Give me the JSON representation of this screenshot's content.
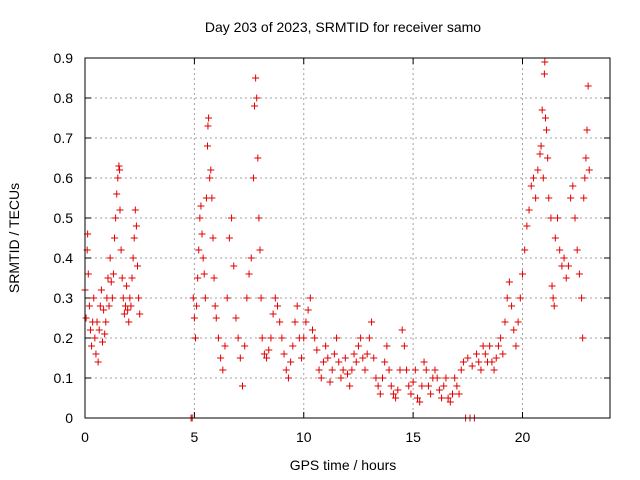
{
  "chart_data": {
    "type": "scatter",
    "title": "Day 203 of 2023, SRMTID for receiver samo",
    "xlabel": "GPS time / hours",
    "ylabel": "SRMTID / TECUs",
    "xlim": [
      0,
      24
    ],
    "ylim": [
      0,
      0.9
    ],
    "xticks": [
      0,
      5,
      10,
      15,
      20
    ],
    "xtick_labels": [
      "0",
      "5",
      "10",
      "15",
      "20"
    ],
    "yticks": [
      0,
      0.1,
      0.2,
      0.3,
      0.4,
      0.5,
      0.6,
      0.7,
      0.8,
      0.9
    ],
    "ytick_labels": [
      "0",
      "0.1",
      "0.2",
      "0.3",
      "0.4",
      "0.5",
      "0.6",
      "0.7",
      "0.8",
      "0.9"
    ],
    "grid": true,
    "marker": "+",
    "color": "#e00000",
    "series": [
      {
        "name": "SRMTID",
        "points": [
          [
            0.0,
            0.32
          ],
          [
            0.05,
            0.25
          ],
          [
            0.1,
            0.42
          ],
          [
            0.12,
            0.46
          ],
          [
            0.15,
            0.36
          ],
          [
            0.2,
            0.28
          ],
          [
            0.25,
            0.22
          ],
          [
            0.3,
            0.18
          ],
          [
            0.35,
            0.24
          ],
          [
            0.4,
            0.3
          ],
          [
            0.45,
            0.2
          ],
          [
            0.5,
            0.16
          ],
          [
            0.55,
            0.24
          ],
          [
            0.6,
            0.14
          ],
          [
            0.65,
            0.22
          ],
          [
            0.7,
            0.28
          ],
          [
            0.75,
            0.32
          ],
          [
            0.8,
            0.19
          ],
          [
            0.85,
            0.27
          ],
          [
            0.9,
            0.21
          ],
          [
            0.95,
            0.24
          ],
          [
            1.0,
            0.3
          ],
          [
            1.05,
            0.35
          ],
          [
            1.1,
            0.28
          ],
          [
            1.15,
            0.4
          ],
          [
            1.2,
            0.34
          ],
          [
            1.25,
            0.3
          ],
          [
            1.3,
            0.36
          ],
          [
            1.35,
            0.45
          ],
          [
            1.4,
            0.5
          ],
          [
            1.45,
            0.56
          ],
          [
            1.5,
            0.6
          ],
          [
            1.55,
            0.63
          ],
          [
            1.58,
            0.62
          ],
          [
            1.6,
            0.52
          ],
          [
            1.65,
            0.42
          ],
          [
            1.7,
            0.35
          ],
          [
            1.75,
            0.3
          ],
          [
            1.8,
            0.26
          ],
          [
            1.85,
            0.28
          ],
          [
            1.9,
            0.33
          ],
          [
            1.95,
            0.27
          ],
          [
            2.0,
            0.24
          ],
          [
            2.05,
            0.3
          ],
          [
            2.1,
            0.28
          ],
          [
            2.15,
            0.35
          ],
          [
            2.2,
            0.4
          ],
          [
            2.25,
            0.45
          ],
          [
            2.3,
            0.52
          ],
          [
            2.35,
            0.48
          ],
          [
            2.4,
            0.38
          ],
          [
            2.45,
            0.3
          ],
          [
            2.5,
            0.26
          ],
          [
            4.85,
            0.0
          ],
          [
            4.9,
            0.0
          ],
          [
            4.95,
            0.3
          ],
          [
            5.0,
            0.25
          ],
          [
            5.05,
            0.2
          ],
          [
            5.1,
            0.28
          ],
          [
            5.15,
            0.35
          ],
          [
            5.2,
            0.42
          ],
          [
            5.25,
            0.5
          ],
          [
            5.3,
            0.53
          ],
          [
            5.35,
            0.46
          ],
          [
            5.4,
            0.4
          ],
          [
            5.45,
            0.36
          ],
          [
            5.5,
            0.3
          ],
          [
            5.55,
            0.55
          ],
          [
            5.6,
            0.68
          ],
          [
            5.62,
            0.73
          ],
          [
            5.65,
            0.75
          ],
          [
            5.7,
            0.6
          ],
          [
            5.75,
            0.62
          ],
          [
            5.8,
            0.55
          ],
          [
            5.85,
            0.45
          ],
          [
            5.9,
            0.35
          ],
          [
            5.95,
            0.28
          ],
          [
            6.0,
            0.25
          ],
          [
            6.1,
            0.2
          ],
          [
            6.2,
            0.15
          ],
          [
            6.3,
            0.12
          ],
          [
            6.4,
            0.18
          ],
          [
            6.5,
            0.3
          ],
          [
            6.6,
            0.45
          ],
          [
            6.7,
            0.5
          ],
          [
            6.8,
            0.38
          ],
          [
            6.9,
            0.25
          ],
          [
            7.0,
            0.2
          ],
          [
            7.1,
            0.15
          ],
          [
            7.2,
            0.08
          ],
          [
            7.3,
            0.18
          ],
          [
            7.4,
            0.3
          ],
          [
            7.5,
            0.36
          ],
          [
            7.6,
            0.4
          ],
          [
            7.7,
            0.6
          ],
          [
            7.75,
            0.78
          ],
          [
            7.8,
            0.85
          ],
          [
            7.85,
            0.8
          ],
          [
            7.9,
            0.65
          ],
          [
            7.95,
            0.5
          ],
          [
            8.0,
            0.42
          ],
          [
            8.05,
            0.3
          ],
          [
            8.1,
            0.2
          ],
          [
            8.2,
            0.16
          ],
          [
            8.3,
            0.15
          ],
          [
            8.4,
            0.17
          ],
          [
            8.5,
            0.2
          ],
          [
            8.6,
            0.26
          ],
          [
            8.7,
            0.3
          ],
          [
            8.8,
            0.28
          ],
          [
            8.9,
            0.24
          ],
          [
            9.0,
            0.2
          ],
          [
            9.1,
            0.16
          ],
          [
            9.2,
            0.12
          ],
          [
            9.3,
            0.1
          ],
          [
            9.4,
            0.14
          ],
          [
            9.5,
            0.18
          ],
          [
            9.6,
            0.24
          ],
          [
            9.7,
            0.28
          ],
          [
            9.8,
            0.2
          ],
          [
            9.9,
            0.15
          ],
          [
            10.0,
            0.2
          ],
          [
            10.1,
            0.24
          ],
          [
            10.2,
            0.27
          ],
          [
            10.3,
            0.3
          ],
          [
            10.4,
            0.22
          ],
          [
            10.5,
            0.2
          ],
          [
            10.6,
            0.17
          ],
          [
            10.7,
            0.12
          ],
          [
            10.8,
            0.1
          ],
          [
            10.9,
            0.14
          ],
          [
            11.0,
            0.18
          ],
          [
            11.1,
            0.15
          ],
          [
            11.2,
            0.09
          ],
          [
            11.3,
            0.12
          ],
          [
            11.4,
            0.16
          ],
          [
            11.5,
            0.2
          ],
          [
            11.6,
            0.14
          ],
          [
            11.7,
            0.1
          ],
          [
            11.8,
            0.12
          ],
          [
            11.9,
            0.15
          ],
          [
            12.0,
            0.11
          ],
          [
            12.1,
            0.08
          ],
          [
            12.2,
            0.12
          ],
          [
            12.3,
            0.16
          ],
          [
            12.4,
            0.14
          ],
          [
            12.5,
            0.18
          ],
          [
            12.6,
            0.2
          ],
          [
            12.7,
            0.15
          ],
          [
            12.8,
            0.12
          ],
          [
            12.9,
            0.16
          ],
          [
            13.0,
            0.2
          ],
          [
            13.1,
            0.24
          ],
          [
            13.2,
            0.15
          ],
          [
            13.3,
            0.1
          ],
          [
            13.4,
            0.08
          ],
          [
            13.5,
            0.06
          ],
          [
            13.6,
            0.1
          ],
          [
            13.7,
            0.14
          ],
          [
            13.8,
            0.18
          ],
          [
            13.9,
            0.12
          ],
          [
            14.0,
            0.08
          ],
          [
            14.1,
            0.06
          ],
          [
            14.2,
            0.05
          ],
          [
            14.3,
            0.07
          ],
          [
            14.4,
            0.12
          ],
          [
            14.5,
            0.22
          ],
          [
            14.6,
            0.18
          ],
          [
            14.7,
            0.12
          ],
          [
            14.8,
            0.08
          ],
          [
            14.9,
            0.06
          ],
          [
            15.0,
            0.09
          ],
          [
            15.1,
            0.12
          ],
          [
            15.2,
            0.05
          ],
          [
            15.3,
            0.04
          ],
          [
            15.4,
            0.08
          ],
          [
            15.5,
            0.14
          ],
          [
            15.6,
            0.12
          ],
          [
            15.7,
            0.08
          ],
          [
            15.8,
            0.06
          ],
          [
            15.9,
            0.1
          ],
          [
            16.0,
            0.12
          ],
          [
            16.1,
            0.1
          ],
          [
            16.2,
            0.07
          ],
          [
            16.3,
            0.05
          ],
          [
            16.4,
            0.08
          ],
          [
            16.5,
            0.1
          ],
          [
            16.6,
            0.05
          ],
          [
            16.7,
            0.04
          ],
          [
            16.8,
            0.06
          ],
          [
            16.9,
            0.1
          ],
          [
            17.0,
            0.08
          ],
          [
            17.1,
            0.06
          ],
          [
            17.2,
            0.12
          ],
          [
            17.3,
            0.14
          ],
          [
            17.4,
            0.0
          ],
          [
            17.5,
            0.15
          ],
          [
            17.6,
            0.0
          ],
          [
            17.7,
            0.13
          ],
          [
            17.8,
            0.0
          ],
          [
            17.9,
            0.16
          ],
          [
            18.0,
            0.14
          ],
          [
            18.1,
            0.12
          ],
          [
            18.2,
            0.18
          ],
          [
            18.3,
            0.16
          ],
          [
            18.4,
            0.14
          ],
          [
            18.5,
            0.18
          ],
          [
            18.6,
            0.14
          ],
          [
            18.7,
            0.12
          ],
          [
            18.8,
            0.15
          ],
          [
            18.9,
            0.18
          ],
          [
            19.0,
            0.2
          ],
          [
            19.1,
            0.16
          ],
          [
            19.2,
            0.24
          ],
          [
            19.3,
            0.3
          ],
          [
            19.4,
            0.34
          ],
          [
            19.5,
            0.28
          ],
          [
            19.6,
            0.22
          ],
          [
            19.7,
            0.18
          ],
          [
            19.8,
            0.24
          ],
          [
            19.9,
            0.3
          ],
          [
            20.0,
            0.36
          ],
          [
            20.1,
            0.42
          ],
          [
            20.2,
            0.48
          ],
          [
            20.3,
            0.52
          ],
          [
            20.4,
            0.58
          ],
          [
            20.5,
            0.6
          ],
          [
            20.6,
            0.55
          ],
          [
            20.7,
            0.62
          ],
          [
            20.8,
            0.66
          ],
          [
            20.85,
            0.68
          ],
          [
            20.9,
            0.77
          ],
          [
            20.95,
            0.6
          ],
          [
            21.0,
            0.86
          ],
          [
            21.02,
            0.89
          ],
          [
            21.05,
            0.75
          ],
          [
            21.1,
            0.72
          ],
          [
            21.15,
            0.65
          ],
          [
            21.2,
            0.55
          ],
          [
            21.3,
            0.5
          ],
          [
            21.35,
            0.33
          ],
          [
            21.4,
            0.3
          ],
          [
            21.45,
            0.28
          ],
          [
            21.5,
            0.45
          ],
          [
            21.6,
            0.5
          ],
          [
            21.7,
            0.42
          ],
          [
            21.8,
            0.38
          ],
          [
            21.9,
            0.4
          ],
          [
            22.0,
            0.35
          ],
          [
            22.1,
            0.38
          ],
          [
            22.2,
            0.55
          ],
          [
            22.3,
            0.58
          ],
          [
            22.4,
            0.5
          ],
          [
            22.5,
            0.42
          ],
          [
            22.6,
            0.36
          ],
          [
            22.7,
            0.3
          ],
          [
            22.75,
            0.2
          ],
          [
            22.8,
            0.55
          ],
          [
            22.85,
            0.6
          ],
          [
            22.9,
            0.65
          ],
          [
            22.95,
            0.72
          ],
          [
            23.0,
            0.83
          ],
          [
            23.05,
            0.62
          ]
        ]
      }
    ]
  }
}
